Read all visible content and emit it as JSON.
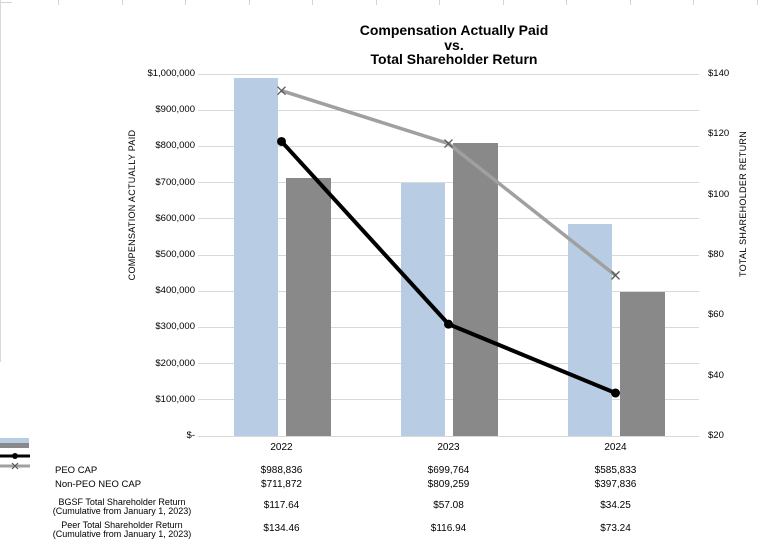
{
  "title": {
    "line1": "Compensation Actually Paid",
    "line2": "vs.",
    "line3": "Total Shareholder Return"
  },
  "left_axis": {
    "title": "COMPENSATION ACTUALLY PAID",
    "ticks": [
      "$1,000,000",
      "$900,000",
      "$800,000",
      "$700,000",
      "$600,000",
      "$500,000",
      "$400,000",
      "$300,000",
      "$200,000",
      "$100,000",
      "$-"
    ],
    "min": 0,
    "max": 1000000
  },
  "right_axis": {
    "title": "TOTAL SHAREHOLDER RETURN",
    "ticks": [
      "$140",
      "$120",
      "$100",
      "$80",
      "$60",
      "$40",
      "$20"
    ],
    "tick_values": [
      140,
      120,
      100,
      80,
      60,
      40,
      20
    ],
    "min": 20,
    "max": 140
  },
  "chart_data": {
    "type": "bar+line combo",
    "title": "Compensation Actually Paid vs. Total Shareholder Return",
    "categories": [
      "2022",
      "2023",
      "2024"
    ],
    "left_axis_label": "COMPENSATION ACTUALLY PAID",
    "right_axis_label": "TOTAL SHAREHOLDER RETURN",
    "left_ylim": [
      0,
      1000000
    ],
    "right_ylim": [
      20,
      140
    ],
    "grid": true,
    "legend_position": "bottom-table",
    "series": [
      {
        "name": "PEO CAP",
        "sub": "",
        "type": "bar",
        "axis": "left",
        "color": "#b8cce4",
        "marker": "rect",
        "values": [
          988836,
          699764,
          585833
        ],
        "labels": [
          "$988,836",
          "$699,764",
          "$585,833"
        ]
      },
      {
        "name": "Non-PEO NEO CAP",
        "sub": "",
        "type": "bar",
        "axis": "left",
        "color": "#898989",
        "marker": "rect",
        "values": [
          711872,
          809259,
          397836
        ],
        "labels": [
          "$711,872",
          "$809,259",
          "$397,836"
        ]
      },
      {
        "name": "BGSF Total Shareholder Return",
        "sub": "(Cumulative from January 1, 2023)",
        "type": "line",
        "axis": "right",
        "color": "#000000",
        "marker": "circle",
        "values": [
          117.64,
          57.08,
          34.25
        ],
        "labels": [
          "$117.64",
          "$57.08",
          "$34.25"
        ]
      },
      {
        "name": "Peer Total Shareholder Return",
        "sub": "(Cumulative from January 1, 2023)",
        "type": "line",
        "axis": "right",
        "color": "#a0a0a0",
        "marker": "x",
        "values": [
          134.46,
          116.94,
          73.24
        ],
        "labels": [
          "$134.46",
          "$116.94",
          "$73.24"
        ]
      }
    ]
  },
  "colors": {
    "peo_bar": "#b8cce4",
    "neo_bar": "#898989",
    "bgsf_line": "#000000",
    "peer_line": "#a0a0a0",
    "gridline": "#d9d9d9"
  }
}
